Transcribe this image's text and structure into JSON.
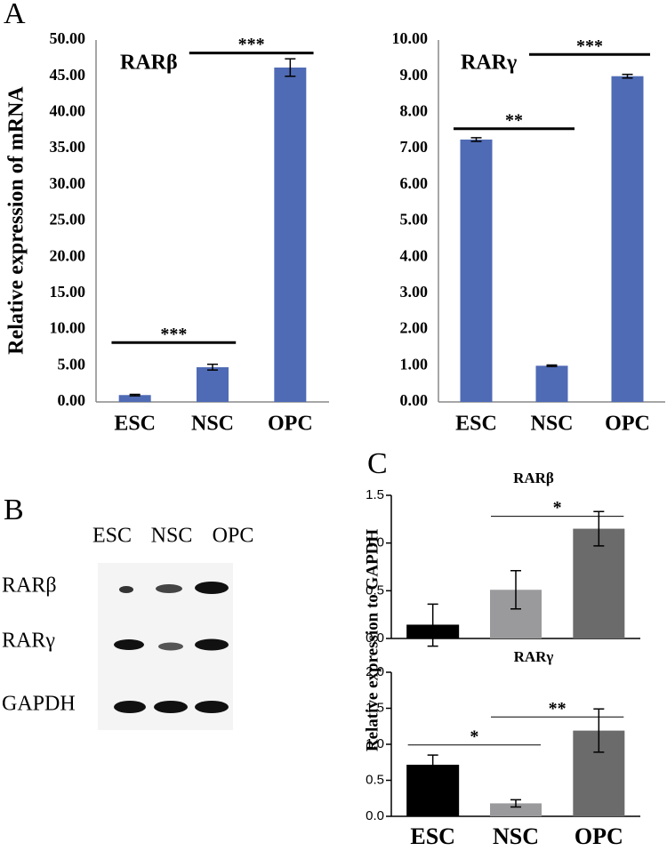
{
  "chart_data": [
    {
      "type": "bar",
      "panel_label": "A",
      "title": "RARβ",
      "y_label": "Relative expression of mRNA",
      "categories": [
        "ESC",
        "NSC",
        "OPC"
      ],
      "values": [
        0.95,
        4.8,
        46.2
      ],
      "errors": [
        0.1,
        0.4,
        1.2
      ],
      "color": "#4f6bb5",
      "ylim": [
        0,
        50
      ],
      "yticks": [
        {
          "value": 0,
          "label": "0.00"
        },
        {
          "value": 5,
          "label": "5.00"
        },
        {
          "value": 10,
          "label": "10.00"
        },
        {
          "value": 15,
          "label": "15.00"
        },
        {
          "value": 20,
          "label": "20.00"
        },
        {
          "value": 25,
          "label": "25.00"
        },
        {
          "value": 30,
          "label": "30.00"
        },
        {
          "value": 35,
          "label": "35.00"
        },
        {
          "value": 40,
          "label": "40.00"
        },
        {
          "value": 45,
          "label": "45.00"
        },
        {
          "value": 50,
          "label": "50.00"
        }
      ],
      "tick_marks": false,
      "annotations": [
        {
          "text": "***",
          "from": 0,
          "to": 1,
          "y": 8.2
        },
        {
          "text": "***",
          "from": 1,
          "to": 2,
          "y": 48.2
        }
      ]
    },
    {
      "type": "bar",
      "title": "RARγ",
      "categories": [
        "ESC",
        "NSC",
        "OPC"
      ],
      "values": [
        7.25,
        1.0,
        9.0
      ],
      "errors": [
        0.05,
        0.02,
        0.05
      ],
      "color": "#4f6bb5",
      "ylim": [
        0,
        10
      ],
      "yticks": [
        {
          "value": 0,
          "label": "0.00"
        },
        {
          "value": 1,
          "label": "1.00"
        },
        {
          "value": 2,
          "label": "2.00"
        },
        {
          "value": 3,
          "label": "3.00"
        },
        {
          "value": 4,
          "label": "4.00"
        },
        {
          "value": 5,
          "label": "5.00"
        },
        {
          "value": 6,
          "label": "6.00"
        },
        {
          "value": 7,
          "label": "7.00"
        },
        {
          "value": 8,
          "label": "8.00"
        },
        {
          "value": 9,
          "label": "9.00"
        },
        {
          "value": 10,
          "label": "10.00"
        }
      ],
      "tick_marks": false,
      "annotations": [
        {
          "text": "**",
          "from": 0,
          "to": 1,
          "y": 7.55
        },
        {
          "text": "***",
          "from": 1,
          "to": 2,
          "y": 9.6
        }
      ]
    },
    {
      "type": "bar",
      "panel_label": "C",
      "title": "RARβ",
      "y_label": "Relative expression to GAPDH",
      "categories": [
        null,
        null,
        null
      ],
      "values": [
        0.14,
        0.51,
        1.15
      ],
      "errors": [
        0.22,
        0.2,
        0.18
      ],
      "colors": [
        "#000000",
        "#9a9a9c",
        "#6b6b6b"
      ],
      "ylim": [
        0,
        1.5
      ],
      "yticks": [
        {
          "value": 0,
          "label": "0.0"
        },
        0.5,
        {
          "value": 1,
          "label": "1.0"
        },
        1.5
      ],
      "tick_marks": true,
      "annotations": [
        {
          "text": "*",
          "from": 1,
          "to": 2,
          "y": 1.28
        }
      ]
    },
    {
      "type": "bar",
      "title": "RARγ",
      "categories": [
        "ESC",
        "NSC",
        "OPC"
      ],
      "values": [
        0.71,
        0.18,
        1.19
      ],
      "errors": [
        0.14,
        0.05,
        0.3
      ],
      "colors": [
        "#000000",
        "#9a9a9c",
        "#6b6b6b"
      ],
      "ylim": [
        0,
        2
      ],
      "yticks": [
        {
          "value": 0,
          "label": "0.0"
        },
        0.5,
        {
          "value": 1,
          "label": "1.0"
        },
        1.5,
        {
          "value": 2,
          "label": "2.0"
        }
      ],
      "tick_marks": true,
      "annotations": [
        {
          "text": "*",
          "from": 0,
          "to": 1,
          "y": 0.99
        },
        {
          "text": "**",
          "from": 1,
          "to": 2,
          "y": 1.38
        }
      ]
    }
  ],
  "blot": {
    "panel_label": "B",
    "lanes": [
      "ESC",
      "NSC",
      "OPC"
    ],
    "rows": [
      "RARβ",
      "RARγ",
      "GAPDH"
    ]
  }
}
